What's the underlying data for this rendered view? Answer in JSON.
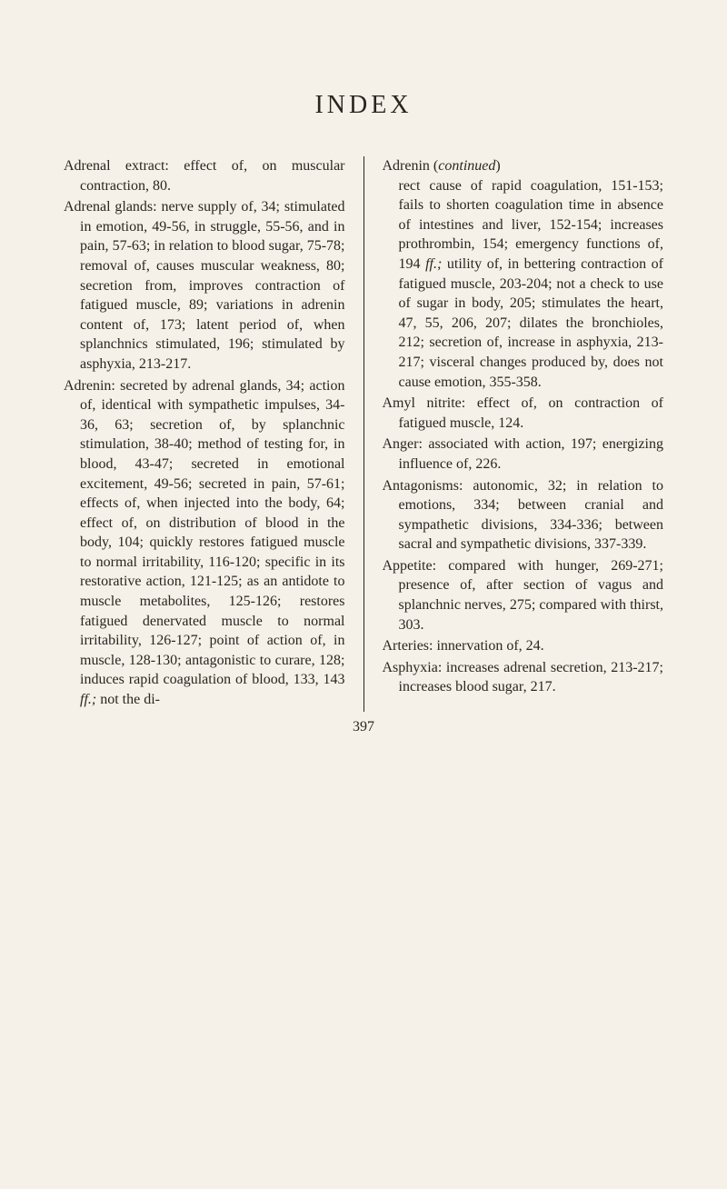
{
  "page": {
    "title": "INDEX",
    "pageNumber": "397",
    "background_color": "#f5f1e8",
    "text_color": "#2a2520",
    "font_family": "Georgia, serif",
    "body_fontsize": 16,
    "title_fontsize": 28,
    "title_letterspacing": 4
  },
  "left_column": {
    "entries": [
      "Adrenal extract: effect of, on muscular contraction, 80.",
      "Adrenal glands: nerve supply of, 34; stimulated in emotion, 49-56, in struggle, 55-56, and in pain, 57-63; in relation to blood sugar, 75-78; removal of, causes muscular weakness, 80; secretion from, improves contraction of fatigued muscle, 89; variations in adrenin content of, 173; latent period of, when splanchnics stimulated, 196; stimulated by asphyxia, 213-217.",
      "Adrenin: secreted by adrenal glands, 34; action of, identical with sympathetic impulses, 34-36, 63; secretion of, by splanchnic stimulation, 38-40; method of testing for, in blood, 43-47; secreted in emotional excitement, 49-56; secreted in pain, 57-61; effects of, when injected into the body, 64; effect of, on distribution of blood in the body, 104; quickly restores fatigued muscle to normal irritability, 116-120; specific in its restorative action, 121-125; as an antidote to muscle metabolites, 125-126; restores fatigued denervated muscle to normal irritability, 126-127; point of action of, in muscle, 128-130; antagonistic to curare, 128; induces rapid coagulation of blood, 133, 143 ff.; not the di-"
    ]
  },
  "right_column": {
    "continued_label": "Adrenin (continued)",
    "continued_text": "rect cause of rapid coagulation, 151-153; fails to shorten coagulation time in absence of intestines and liver, 152-154; increases prothrombin, 154; emergency functions of, 194 ff.; utility of, in bettering contraction of fatigued muscle, 203-204; not a check to use of sugar in body, 205; stimulates the heart, 47, 55, 206, 207; dilates the bronchioles, 212; secretion of, increase in asphyxia, 213-217; visceral changes produced by, does not cause emotion, 355-358.",
    "entries": [
      "Amyl nitrite: effect of, on contraction of fatigued muscle, 124.",
      "Anger: associated with action, 197; energizing influence of, 226.",
      "Antagonisms: autonomic, 32; in relation to emotions, 334; between cranial and sympathetic divisions, 334-336; between sacral and sympathetic divisions, 337-339.",
      "Appetite: compared with hunger, 269-271; presence of, after section of vagus and splanchnic nerves, 275; compared with thirst, 303.",
      "Arteries: innervation of, 24.",
      "Asphyxia: increases adrenal secretion, 213-217; increases blood sugar, 217."
    ]
  }
}
